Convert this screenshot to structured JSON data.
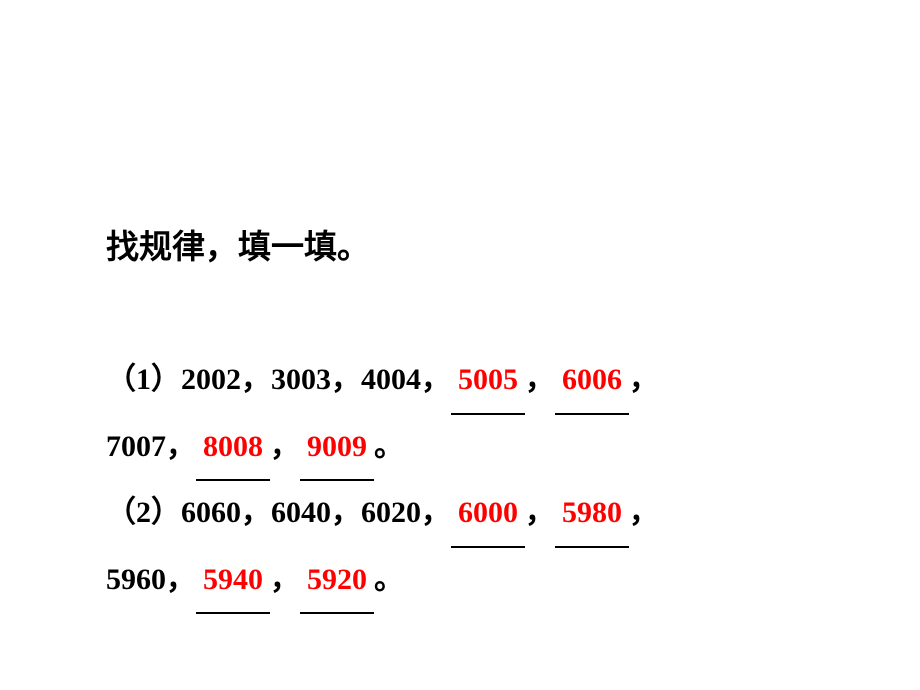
{
  "title": "找规律，填一填。",
  "problems": {
    "p1": {
      "label": "（1）",
      "given1": "2002，",
      "given2": "3003，",
      "given3": "4004，",
      "answer1": "5005",
      "comma1": "，",
      "answer2": "6006",
      "comma2": "，",
      "given4": "7007，",
      "answer3": "8008",
      "comma3": "，",
      "answer4": "9009",
      "period": "。"
    },
    "p2": {
      "label": "（2）",
      "given1": "6060，",
      "given2": "6040，",
      "given3": "6020，",
      "answer1": "6000",
      "comma1": "，",
      "answer2": "5980",
      "comma2": "，",
      "given4": "5960，",
      "answer3": "5940",
      "comma3": "，",
      "answer4": "5920",
      "period": "。"
    }
  },
  "styling": {
    "background_color": "#ffffff",
    "text_color": "#000000",
    "answer_color": "#ff0000",
    "title_fontsize": 33,
    "body_fontsize": 30,
    "font_family": "SimSun",
    "font_weight": "bold",
    "line_height": 2.15,
    "underline_color": "#000000",
    "underline_width": 2
  }
}
